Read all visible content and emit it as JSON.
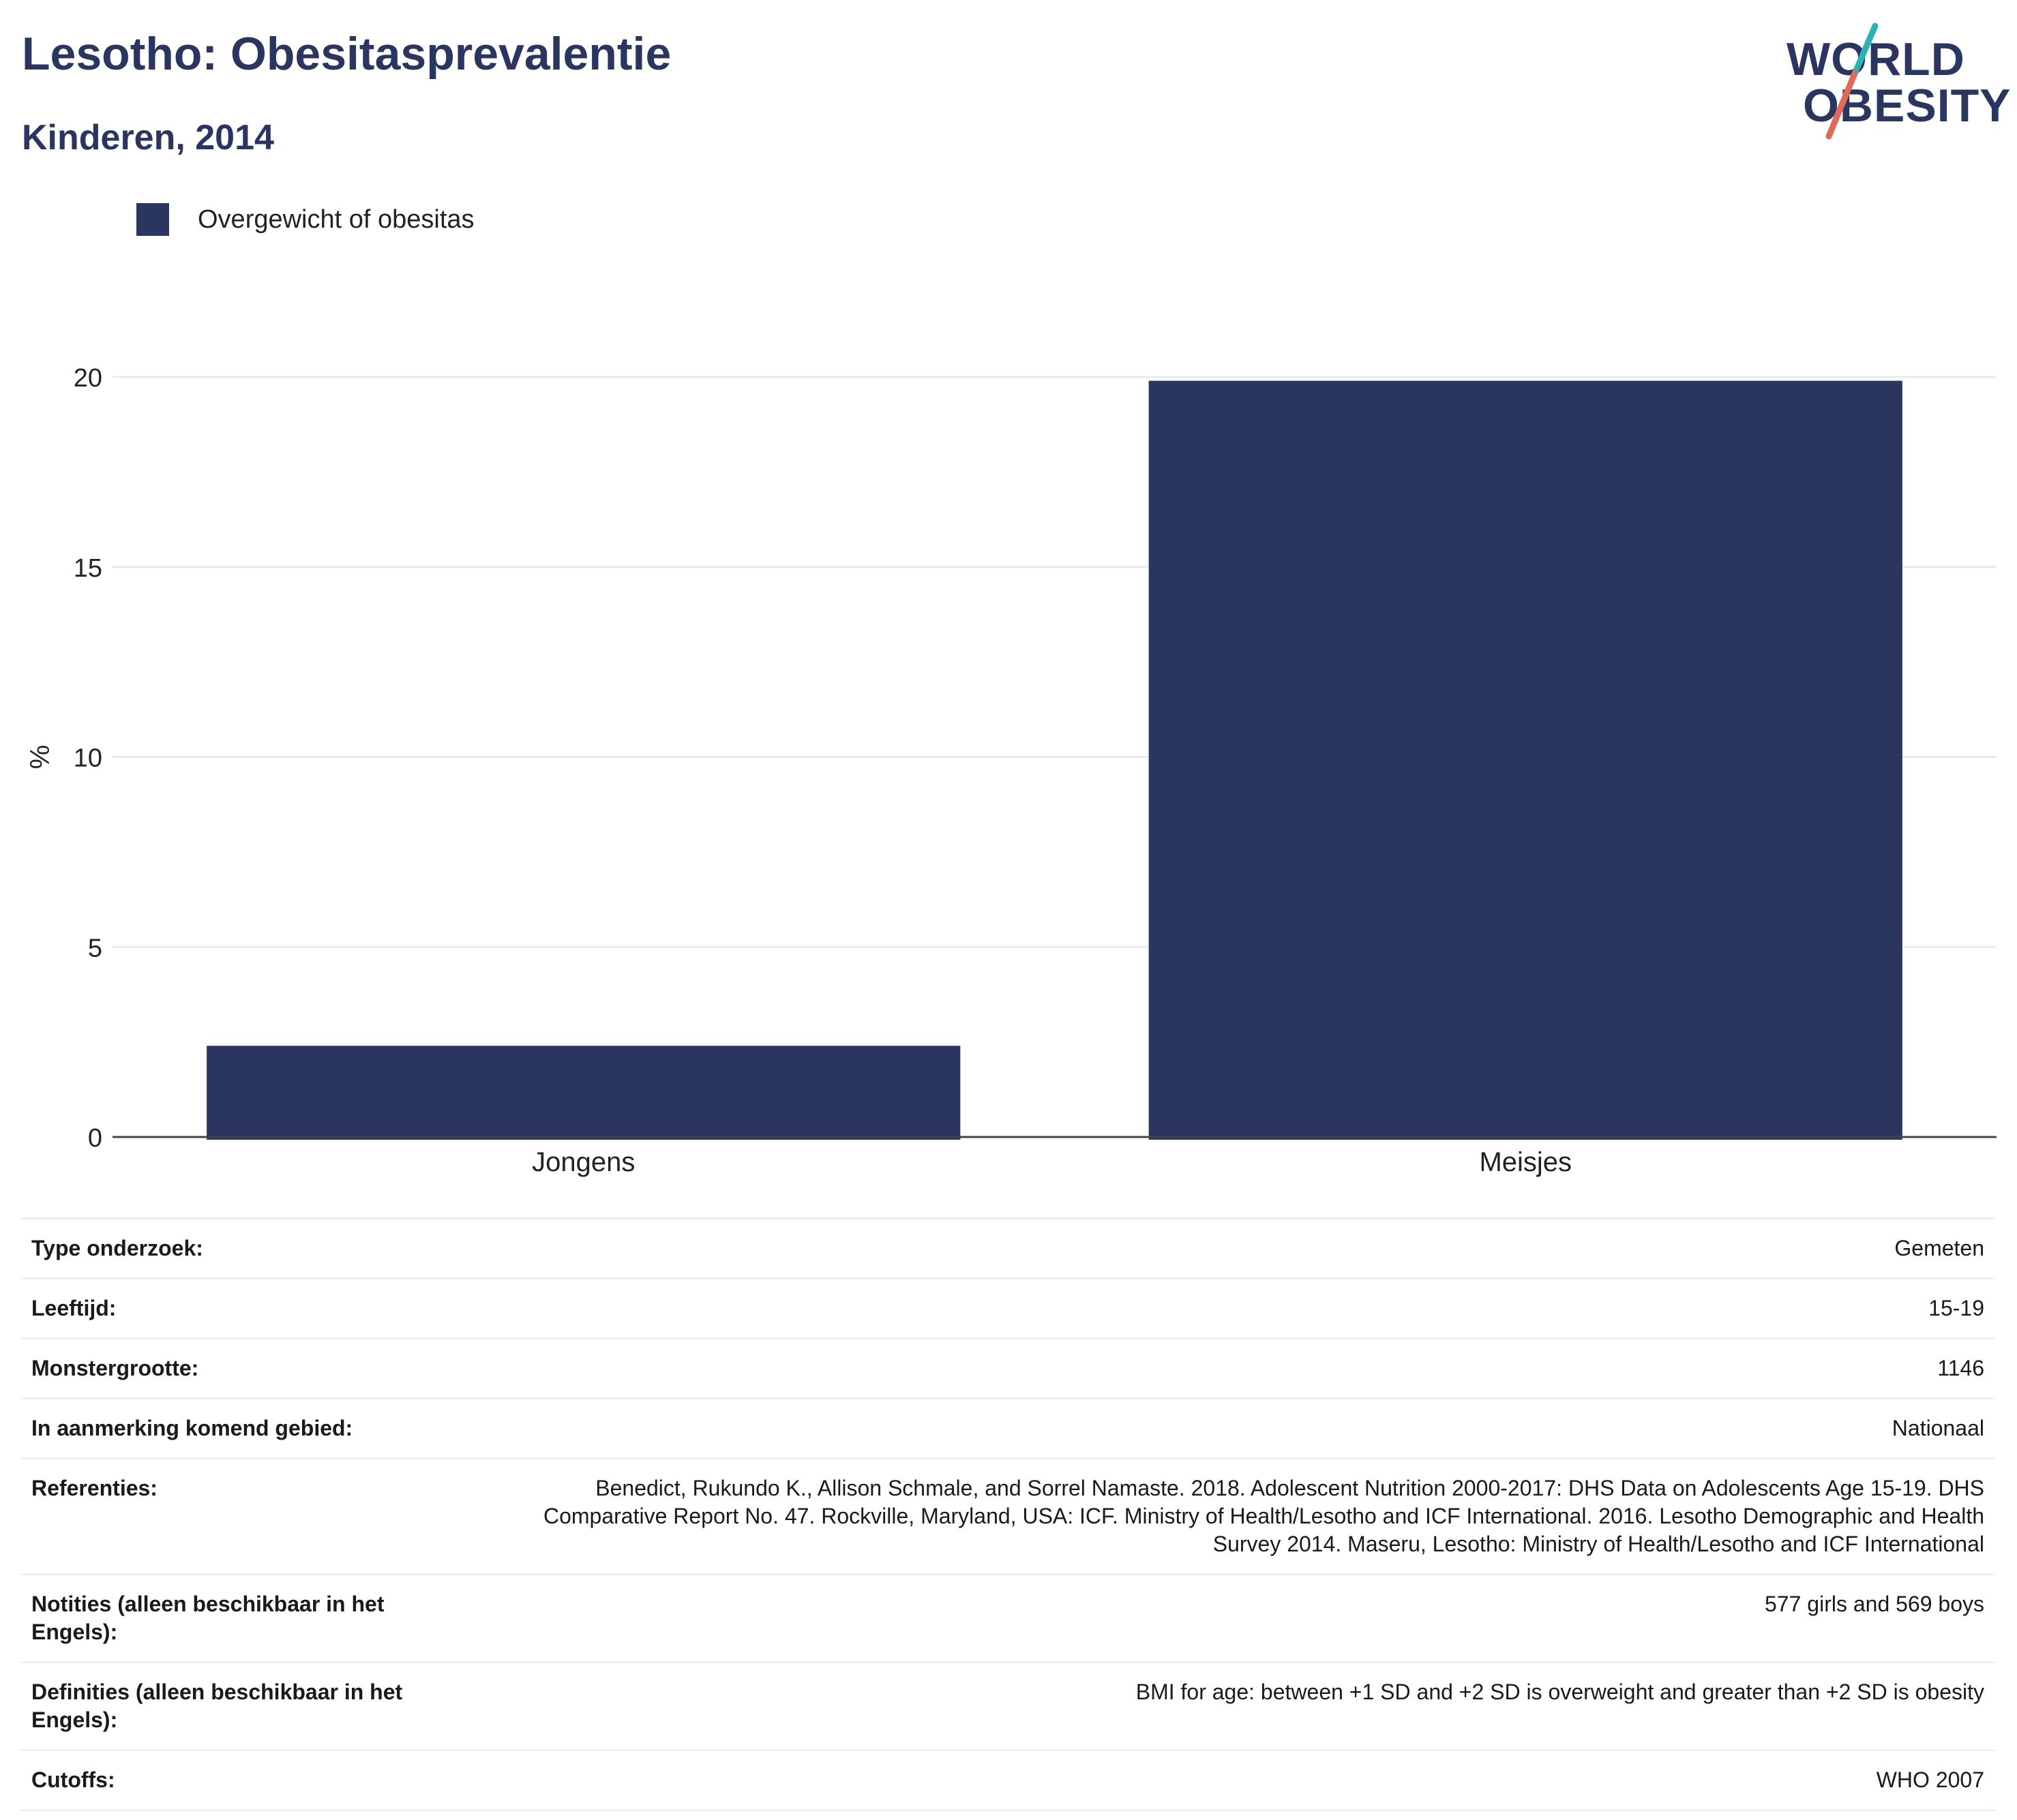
{
  "title": "Lesotho: Obesitasprevalentie",
  "subtitle": "Kinderen, 2014",
  "logo": {
    "line1": "WORLD",
    "line2": "OBESITY",
    "accent_teal": "#2bb3b1",
    "accent_red": "#e06a5a"
  },
  "colors": {
    "bar": "#2a3560",
    "grid": "#e8eaf0",
    "text": "#222222"
  },
  "chart_data": {
    "type": "bar",
    "categories": [
      "Jongens",
      "Meisjes"
    ],
    "series": [
      {
        "name": "Overgewicht of obesitas",
        "values": [
          2.4,
          19.9
        ],
        "color": "#2a3560"
      }
    ],
    "xlabel": "",
    "ylabel": "%",
    "ylim": [
      0,
      21.5
    ],
    "yticks": [
      0,
      5,
      10,
      15,
      20
    ],
    "grid": true,
    "legend_position": "top-left"
  },
  "meta": [
    {
      "key": "Type onderzoek:",
      "value": "Gemeten"
    },
    {
      "key": "Leeftijd:",
      "value": "15-19"
    },
    {
      "key": "Monstergrootte:",
      "value": "1146"
    },
    {
      "key": "In aanmerking komend gebied:",
      "value": "Nationaal"
    },
    {
      "key": "Referenties:",
      "value": "Benedict, Rukundo K., Allison Schmale, and Sorrel Namaste. 2018. Adolescent Nutrition 2000-2017: DHS Data on Adolescents Age 15-19. DHS Comparative Report No. 47. Rockville, Maryland, USA: ICF. Ministry of Health/Lesotho and ICF International. 2016. Lesotho Demographic and Health Survey 2014. Maseru, Lesotho: Ministry of Health/Lesotho and ICF International"
    },
    {
      "key": "Notities (alleen beschikbaar in het Engels):",
      "value": "577 girls and 569 boys"
    },
    {
      "key": "Definities (alleen beschikbaar in het Engels):",
      "value": "BMI for age: between +1 SD and +2 SD is overweight and greater than +2 SD is obesity"
    },
    {
      "key": "Cutoffs:",
      "value": "WHO 2007"
    }
  ]
}
